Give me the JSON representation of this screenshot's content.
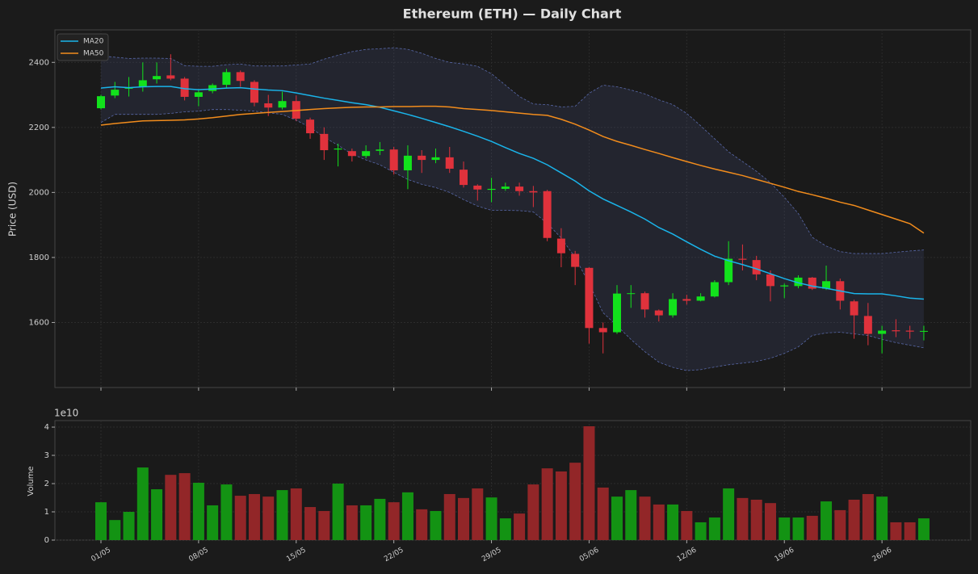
{
  "chart_data": [
    {
      "type": "candlestick",
      "title": "Ethereum (ETH) — Daily Chart",
      "y_label": "Price (USD)",
      "categories": [
        "01/05",
        null,
        null,
        null,
        null,
        null,
        null,
        "08/05",
        null,
        null,
        null,
        null,
        null,
        null,
        "15/05",
        null,
        null,
        null,
        null,
        null,
        null,
        "22/05",
        null,
        null,
        null,
        null,
        null,
        null,
        "29/05",
        null,
        null,
        null,
        null,
        null,
        null,
        "05/06",
        null,
        null,
        null,
        null,
        null,
        null,
        "12/06",
        null,
        null,
        null,
        null,
        null,
        null,
        "19/06",
        null,
        null,
        null,
        null,
        null,
        null,
        "26/06",
        null,
        null,
        null
      ],
      "open": [
        2259,
        2298,
        2319,
        2326,
        2348,
        2360,
        2350,
        2294,
        2312,
        2331,
        2370,
        2340,
        2274,
        2261,
        2281,
        2224,
        2180,
        2132,
        2127,
        2112,
        2128,
        2132,
        2068,
        2113,
        2100,
        2108,
        2070,
        2021,
        2008,
        2011,
        2018,
        2004,
        2004,
        1858,
        1811,
        1768,
        1583,
        1570,
        1688,
        1690,
        1637,
        1622,
        1672,
        1667,
        1680,
        1724,
        1796,
        1792,
        1748,
        1711,
        1712,
        1738,
        1704,
        1727,
        1665,
        1620,
        1565,
        1576,
        1575,
        1572
      ],
      "high": [
        2300,
        2340,
        2355,
        2400,
        2400,
        2425,
        2355,
        2318,
        2335,
        2380,
        2375,
        2345,
        2300,
        2310,
        2298,
        2230,
        2200,
        2150,
        2135,
        2145,
        2155,
        2140,
        2145,
        2130,
        2135,
        2140,
        2095,
        2025,
        2045,
        2030,
        2030,
        2020,
        2008,
        1890,
        1820,
        1770,
        1600,
        1715,
        1715,
        1695,
        1640,
        1690,
        1685,
        1690,
        1730,
        1850,
        1840,
        1805,
        1760,
        1720,
        1745,
        1740,
        1775,
        1735,
        1670,
        1660,
        1590,
        1610,
        1590,
        1590
      ],
      "low": [
        2255,
        2290,
        2295,
        2310,
        2335,
        2345,
        2283,
        2265,
        2305,
        2320,
        2325,
        2265,
        2235,
        2255,
        2220,
        2165,
        2100,
        2080,
        2095,
        2105,
        2115,
        2055,
        2010,
        2060,
        2090,
        2060,
        2015,
        1975,
        1970,
        2005,
        1990,
        1955,
        1850,
        1770,
        1715,
        1535,
        1505,
        1565,
        1645,
        1615,
        1603,
        1615,
        1655,
        1665,
        1677,
        1715,
        1760,
        1730,
        1665,
        1675,
        1705,
        1700,
        1700,
        1640,
        1550,
        1530,
        1505,
        1555,
        1550,
        1545
      ],
      "close": [
        2296,
        2316,
        2323,
        2345,
        2358,
        2350,
        2294,
        2308,
        2330,
        2370,
        2343,
        2276,
        2261,
        2281,
        2227,
        2182,
        2130,
        2135,
        2112,
        2127,
        2132,
        2068,
        2113,
        2100,
        2108,
        2073,
        2023,
        2009,
        2011,
        2018,
        2004,
        2000,
        1860,
        1813,
        1771,
        1583,
        1570,
        1689,
        1690,
        1640,
        1622,
        1672,
        1667,
        1680,
        1724,
        1796,
        1793,
        1748,
        1712,
        1714,
        1738,
        1704,
        1727,
        1667,
        1622,
        1565,
        1575,
        1573,
        1572,
        1574
      ],
      "up_color": "#12e21c",
      "down_color": "#e0323c",
      "series": [
        {
          "name": "MA20",
          "color": "#1ab4ea",
          "values": [
            2321,
            2325,
            2322,
            2325,
            2326,
            2326,
            2319,
            2316,
            2318,
            2321,
            2322,
            2318,
            2315,
            2313,
            2306,
            2298,
            2290,
            2283,
            2276,
            2270,
            2262,
            2251,
            2240,
            2228,
            2215,
            2202,
            2188,
            2173,
            2157,
            2138,
            2120,
            2105,
            2085,
            2060,
            2035,
            2005,
            1980,
            1960,
            1940,
            1918,
            1892,
            1872,
            1848,
            1825,
            1804,
            1790,
            1778,
            1765,
            1750,
            1735,
            1722,
            1712,
            1705,
            1697,
            1689,
            1688,
            1688,
            1682,
            1675,
            1672
          ]
        },
        {
          "name": "MA50",
          "color": "#f28c1c",
          "values": [
            2207,
            2212,
            2216,
            2220,
            2221,
            2222,
            2223,
            2226,
            2230,
            2235,
            2240,
            2243,
            2246,
            2249,
            2252,
            2255,
            2258,
            2260,
            2262,
            2263,
            2263,
            2264,
            2264,
            2265,
            2265,
            2263,
            2258,
            2255,
            2252,
            2248,
            2244,
            2240,
            2237,
            2225,
            2210,
            2192,
            2172,
            2157,
            2145,
            2132,
            2120,
            2107,
            2095,
            2083,
            2072,
            2062,
            2052,
            2040,
            2028,
            2016,
            2003,
            1993,
            1982,
            1970,
            1960,
            1946,
            1932,
            1918,
            1904,
            1875
          ]
        }
      ],
      "bands": {
        "color": "#5868a8",
        "upper": [
          2420,
          2416,
          2412,
          2413,
          2413,
          2412,
          2390,
          2388,
          2388,
          2393,
          2395,
          2389,
          2389,
          2389,
          2392,
          2395,
          2410,
          2422,
          2433,
          2440,
          2442,
          2445,
          2440,
          2428,
          2412,
          2400,
          2395,
          2388,
          2365,
          2330,
          2295,
          2272,
          2270,
          2263,
          2265,
          2305,
          2330,
          2325,
          2315,
          2303,
          2285,
          2270,
          2243,
          2205,
          2165,
          2125,
          2095,
          2065,
          2030,
          1985,
          1935,
          1862,
          1835,
          1818,
          1812,
          1812,
          1812,
          1816,
          1820,
          1823
        ],
        "lower": [
          2215,
          2240,
          2240,
          2240,
          2240,
          2243,
          2248,
          2250,
          2255,
          2255,
          2253,
          2250,
          2245,
          2240,
          2222,
          2200,
          2170,
          2145,
          2118,
          2100,
          2085,
          2062,
          2040,
          2025,
          2015,
          2000,
          1978,
          1958,
          1945,
          1945,
          1944,
          1940,
          1905,
          1860,
          1800,
          1720,
          1630,
          1590,
          1548,
          1510,
          1478,
          1462,
          1452,
          1455,
          1463,
          1470,
          1475,
          1480,
          1490,
          1505,
          1525,
          1560,
          1568,
          1570,
          1565,
          1560,
          1548,
          1538,
          1530,
          1522
        ]
      },
      "ylim": [
        1400,
        2500
      ],
      "yticks": [
        1600,
        1800,
        2000,
        2200,
        2400
      ],
      "grid": true,
      "legend": "upper left"
    },
    {
      "type": "bar",
      "y_label": "Volume",
      "offset_label": "1e10",
      "categories": [
        "01/05",
        null,
        null,
        null,
        null,
        null,
        null,
        "08/05",
        null,
        null,
        null,
        null,
        null,
        null,
        "15/05",
        null,
        null,
        null,
        null,
        null,
        null,
        "22/05",
        null,
        null,
        null,
        null,
        null,
        null,
        "29/05",
        null,
        null,
        null,
        null,
        null,
        null,
        "05/06",
        null,
        null,
        null,
        null,
        null,
        null,
        "12/06",
        null,
        null,
        null,
        null,
        null,
        null,
        "19/06",
        null,
        null,
        null,
        null,
        null,
        null,
        "26/06",
        null,
        null,
        null
      ],
      "values": [
        1.34,
        0.71,
        1.0,
        2.57,
        1.8,
        2.31,
        2.37,
        2.03,
        1.23,
        1.97,
        1.57,
        1.63,
        1.54,
        1.77,
        1.83,
        1.17,
        1.03,
        2.0,
        1.23,
        1.23,
        1.46,
        1.34,
        1.69,
        1.09,
        1.03,
        1.63,
        1.49,
        1.83,
        1.51,
        0.77,
        0.94,
        1.97,
        2.54,
        2.43,
        2.74,
        4.03,
        1.86,
        1.54,
        1.77,
        1.54,
        1.26,
        1.26,
        1.03,
        0.63,
        0.8,
        1.83,
        1.49,
        1.43,
        1.31,
        0.8,
        0.8,
        0.86,
        1.37,
        1.06,
        1.43,
        1.63,
        1.54,
        0.63,
        0.63,
        0.77
      ],
      "up_color": "#139313",
      "down_color": "#922628",
      "ylim": [
        0,
        4.23
      ],
      "yticks": [
        0,
        1,
        2,
        3,
        4
      ],
      "grid": true
    }
  ]
}
